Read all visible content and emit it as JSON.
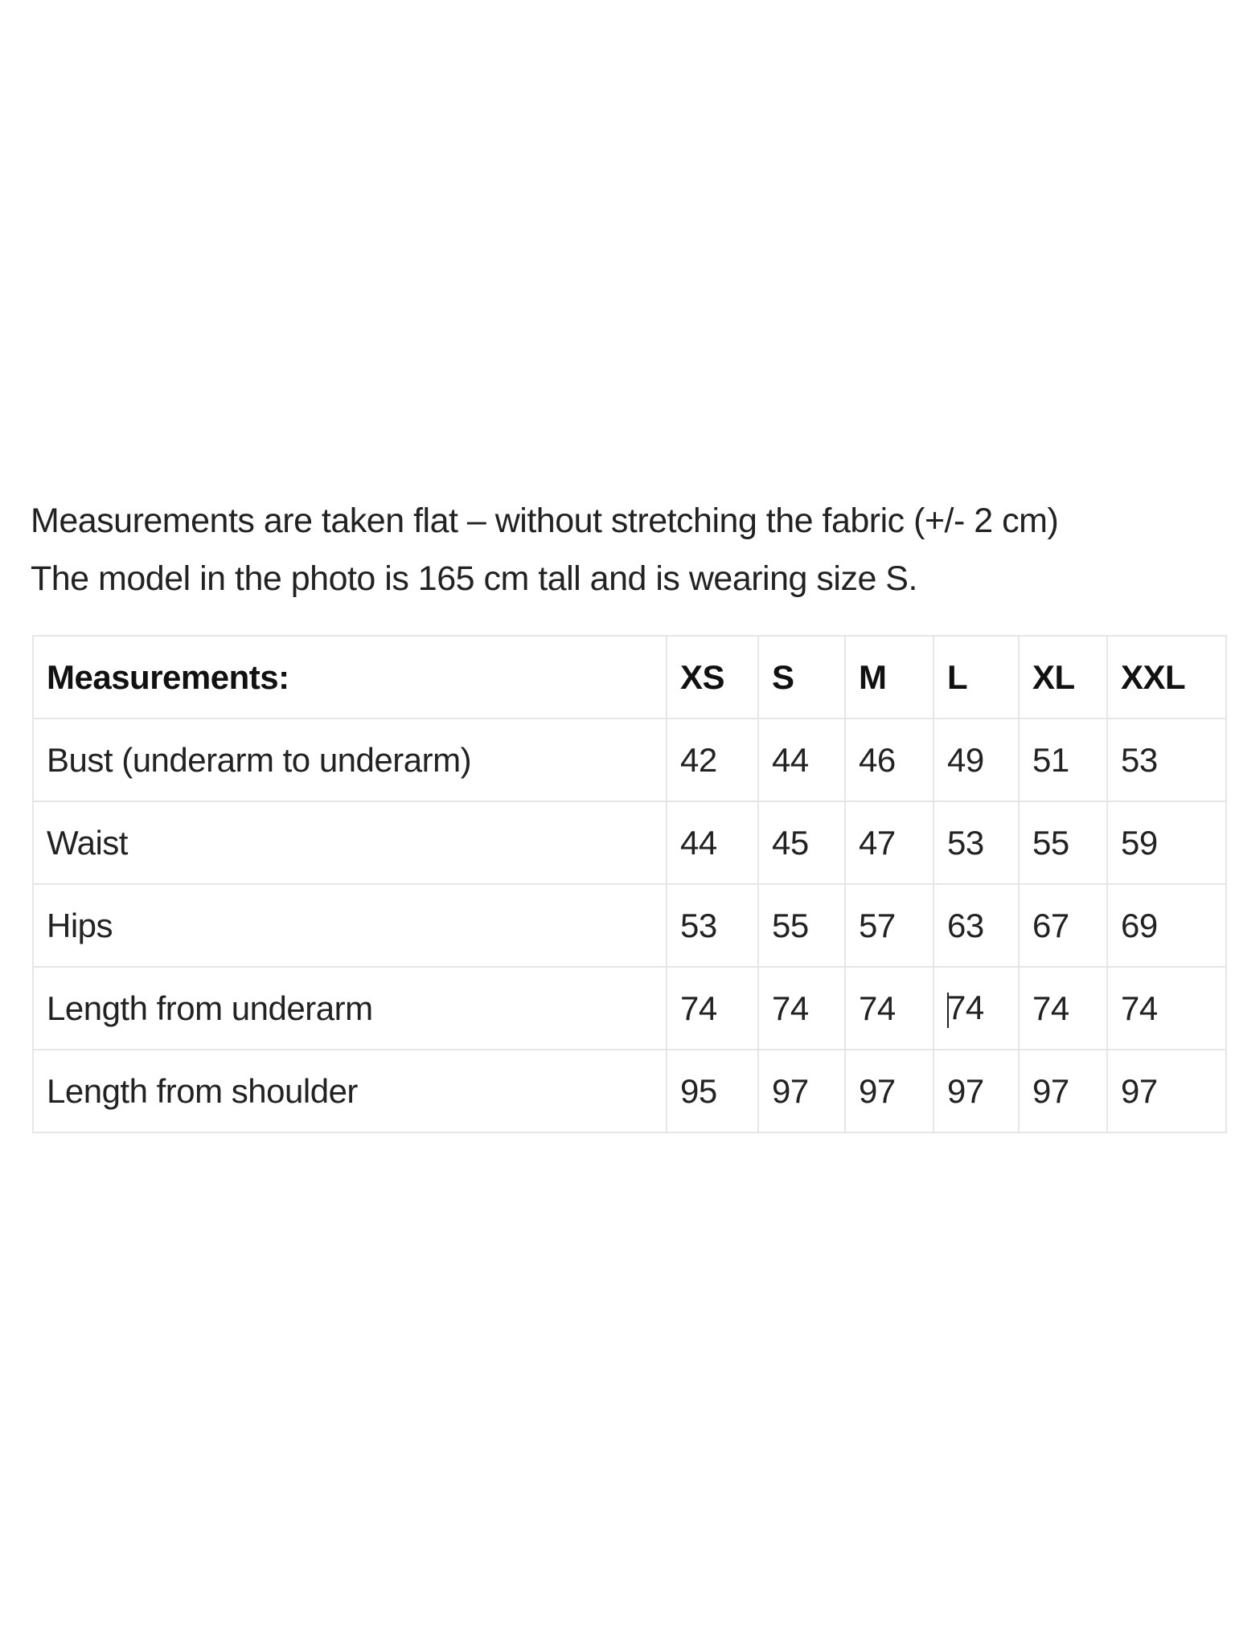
{
  "intro": {
    "line1": "Measurements are taken flat – without stretching the fabric (+/- 2 cm)",
    "line2": "The model in the photo is 165 cm tall and is wearing size S."
  },
  "table": {
    "headers": [
      "Measurements:",
      "XS",
      "S",
      "M",
      "L",
      "XL",
      "XXL"
    ],
    "rows": [
      {
        "label": "Bust (underarm to underarm)",
        "values": [
          "42",
          "44",
          "46",
          "49",
          "51",
          "53"
        ]
      },
      {
        "label": "Waist",
        "values": [
          "44",
          "45",
          "47",
          "53",
          "55",
          "59"
        ]
      },
      {
        "label": "Hips",
        "values": [
          "53",
          "55",
          "57",
          "63",
          "67",
          "69"
        ]
      },
      {
        "label": "Length from underarm",
        "values": [
          "74",
          "74",
          "74",
          "74",
          "74",
          "74"
        ]
      },
      {
        "label": "Length from shoulder",
        "values": [
          "95",
          "97",
          "97",
          "97",
          "97",
          "97"
        ]
      }
    ]
  }
}
